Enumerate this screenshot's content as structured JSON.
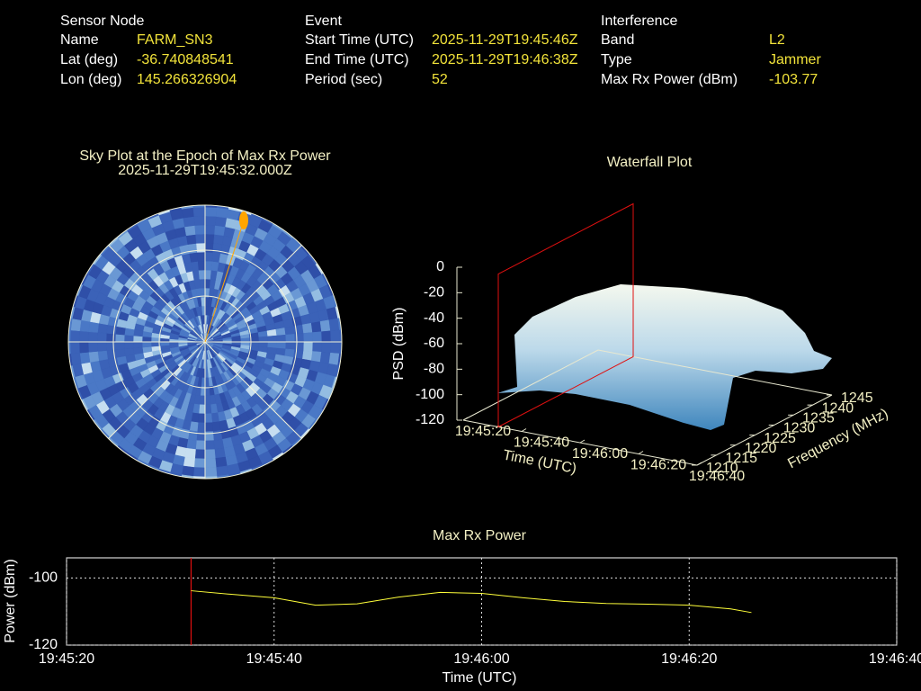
{
  "panels": [
    {
      "title": "Sensor Node",
      "rows": [
        [
          "Name",
          "FARM_SN3"
        ],
        [
          "Lat (deg)",
          "-36.740848541"
        ],
        [
          "Lon (deg)",
          "145.266326904"
        ]
      ]
    },
    {
      "title": "Event",
      "rows": [
        [
          "Start Time (UTC)",
          "2025-11-29T19:45:46Z"
        ],
        [
          "End Time (UTC)",
          "2025-11-29T19:46:38Z"
        ],
        [
          "Period (sec)",
          "52"
        ]
      ]
    },
    {
      "title": "Interference",
      "rows": [
        [
          "Band",
          "L2"
        ],
        [
          "Type",
          "Jammer"
        ],
        [
          "Max Rx Power (dBm)",
          "-103.77"
        ]
      ]
    }
  ],
  "chart_data": [
    {
      "type": "polar",
      "title": "Sky Plot at the Epoch of Max Rx Power",
      "subtitle": "2025-11-29T19:45:32.000Z"
    },
    {
      "type": "surface",
      "title": "Waterfall Plot",
      "xlabel": "Time (UTC)",
      "ylabel": "Frequency (MHz)",
      "zlabel": "PSD (dBm)",
      "xlim": [
        "19:45:20",
        "19:46:40"
      ],
      "xticks": [
        "19:45:20",
        "19:45:40",
        "19:46:00",
        "19:46:20",
        "19:46:40"
      ],
      "ylim": [
        1210,
        1245
      ],
      "yticks": [
        1210,
        1215,
        1220,
        1225,
        1230,
        1235,
        1240,
        1245
      ],
      "zlim": [
        -120,
        0
      ],
      "zticks": [
        -120,
        -100,
        -80,
        -60,
        -40,
        -20,
        0
      ]
    },
    {
      "type": "line",
      "title": "Max Rx Power",
      "xlabel": "Time (UTC)",
      "ylabel": "Power (dBm)",
      "color": "#ffff3a",
      "grid": true,
      "x": [
        "19:45:32",
        "19:45:36",
        "19:45:40",
        "19:45:44",
        "19:45:48",
        "19:45:52",
        "19:45:56",
        "19:46:00",
        "19:46:04",
        "19:46:08",
        "19:46:12",
        "19:46:16",
        "19:46:20",
        "19:46:24",
        "19:46:26"
      ],
      "values": [
        -103.8,
        -104.9,
        -105.9,
        -108.1,
        -107.7,
        -105.7,
        -104.3,
        -104.6,
        -105.9,
        -107.0,
        -107.6,
        -107.8,
        -108.1,
        -109.2,
        -110.3
      ],
      "xlim": [
        "19:45:20",
        "19:46:40"
      ],
      "xticks": [
        "19:45:20",
        "19:45:40",
        "19:46:00",
        "19:46:20",
        "19:46:40"
      ],
      "ylim": [
        -120,
        -94
      ],
      "yticks": [
        -120,
        -100
      ]
    }
  ]
}
